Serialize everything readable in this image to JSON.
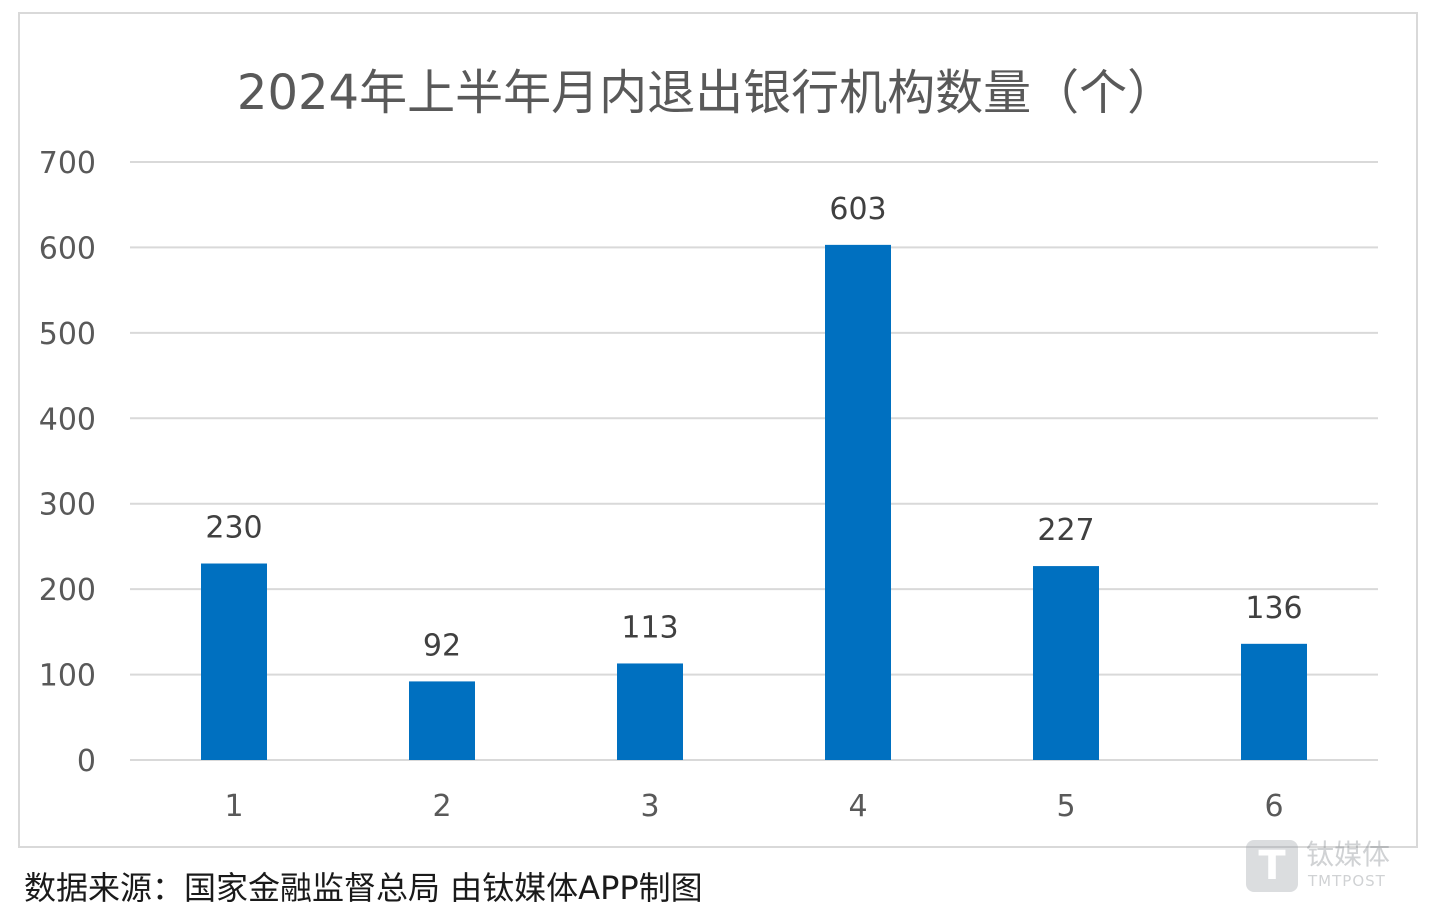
{
  "chart_data": {
    "type": "bar",
    "title": "2024年上半年月内退出银行机构数量（个）",
    "categories": [
      "1",
      "2",
      "3",
      "4",
      "5",
      "6"
    ],
    "values": [
      230,
      92,
      113,
      603,
      227,
      136
    ],
    "data_labels": [
      "230",
      "92",
      "113",
      "603",
      "227",
      "136"
    ],
    "ylim": [
      0,
      700
    ],
    "yticks": [
      "0",
      "100",
      "200",
      "300",
      "400",
      "500",
      "600",
      "700"
    ],
    "xlabel": "",
    "ylabel": "",
    "grid": true,
    "legend": "none",
    "bar_color": "#0070c0"
  },
  "source_note": "数据来源：国家金融监督总局 由钛媒体APP制图",
  "watermark": {
    "logo_letter": "T",
    "brand_cn": "钛媒体",
    "brand_en": "TMTPOST"
  }
}
